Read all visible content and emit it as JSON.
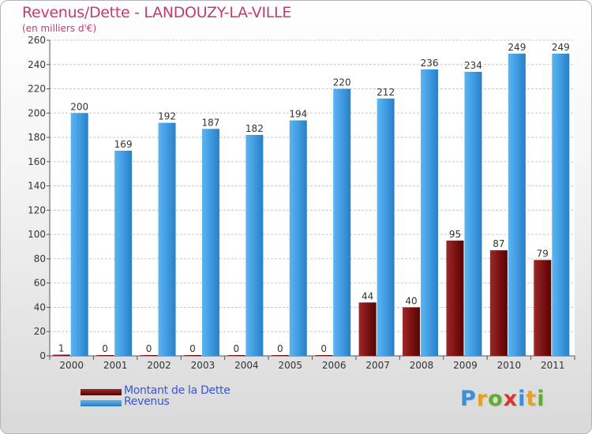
{
  "title": "Revenus/Dette - LANDOUZY-LA-VILLE",
  "subtitle": "(en milliers d'€)",
  "colors": {
    "title": "#c23b6e",
    "debt": "#7a1010",
    "revenue": "#3d99e0",
    "legend_text": "#3a56d6"
  },
  "chart_data": {
    "type": "bar",
    "title": "Revenus/Dette - LANDOUZY-LA-VILLE",
    "ylabel": "(en milliers d'€)",
    "xlabel": "",
    "ylim": [
      0,
      260
    ],
    "yticks": [
      0,
      20,
      40,
      60,
      80,
      100,
      120,
      140,
      160,
      180,
      200,
      220,
      240,
      260
    ],
    "grid": true,
    "legend": "bottom-left",
    "categories": [
      "2000",
      "2001",
      "2002",
      "2003",
      "2004",
      "2005",
      "2006",
      "2007",
      "2008",
      "2009",
      "2010",
      "2011"
    ],
    "series": [
      {
        "name": "Montant de la Dette",
        "values": [
          1,
          0,
          0,
          0,
          0,
          0,
          0,
          44,
          40,
          95,
          87,
          79
        ]
      },
      {
        "name": "Revenus",
        "values": [
          200,
          169,
          192,
          187,
          182,
          194,
          220,
          212,
          236,
          234,
          249,
          249
        ]
      }
    ]
  },
  "legend": {
    "debt_label": "Montant de la Dette",
    "revenue_label": "Revenus"
  },
  "logo": {
    "letters": [
      "P",
      "r",
      "o",
      "x",
      "i",
      "t",
      "i"
    ],
    "colors": [
      "#3d8ed8",
      "#e6a21f",
      "#5fae2f",
      "#d9352b",
      "#3d8ed8",
      "#e6a21f",
      "#5fae2f"
    ]
  }
}
